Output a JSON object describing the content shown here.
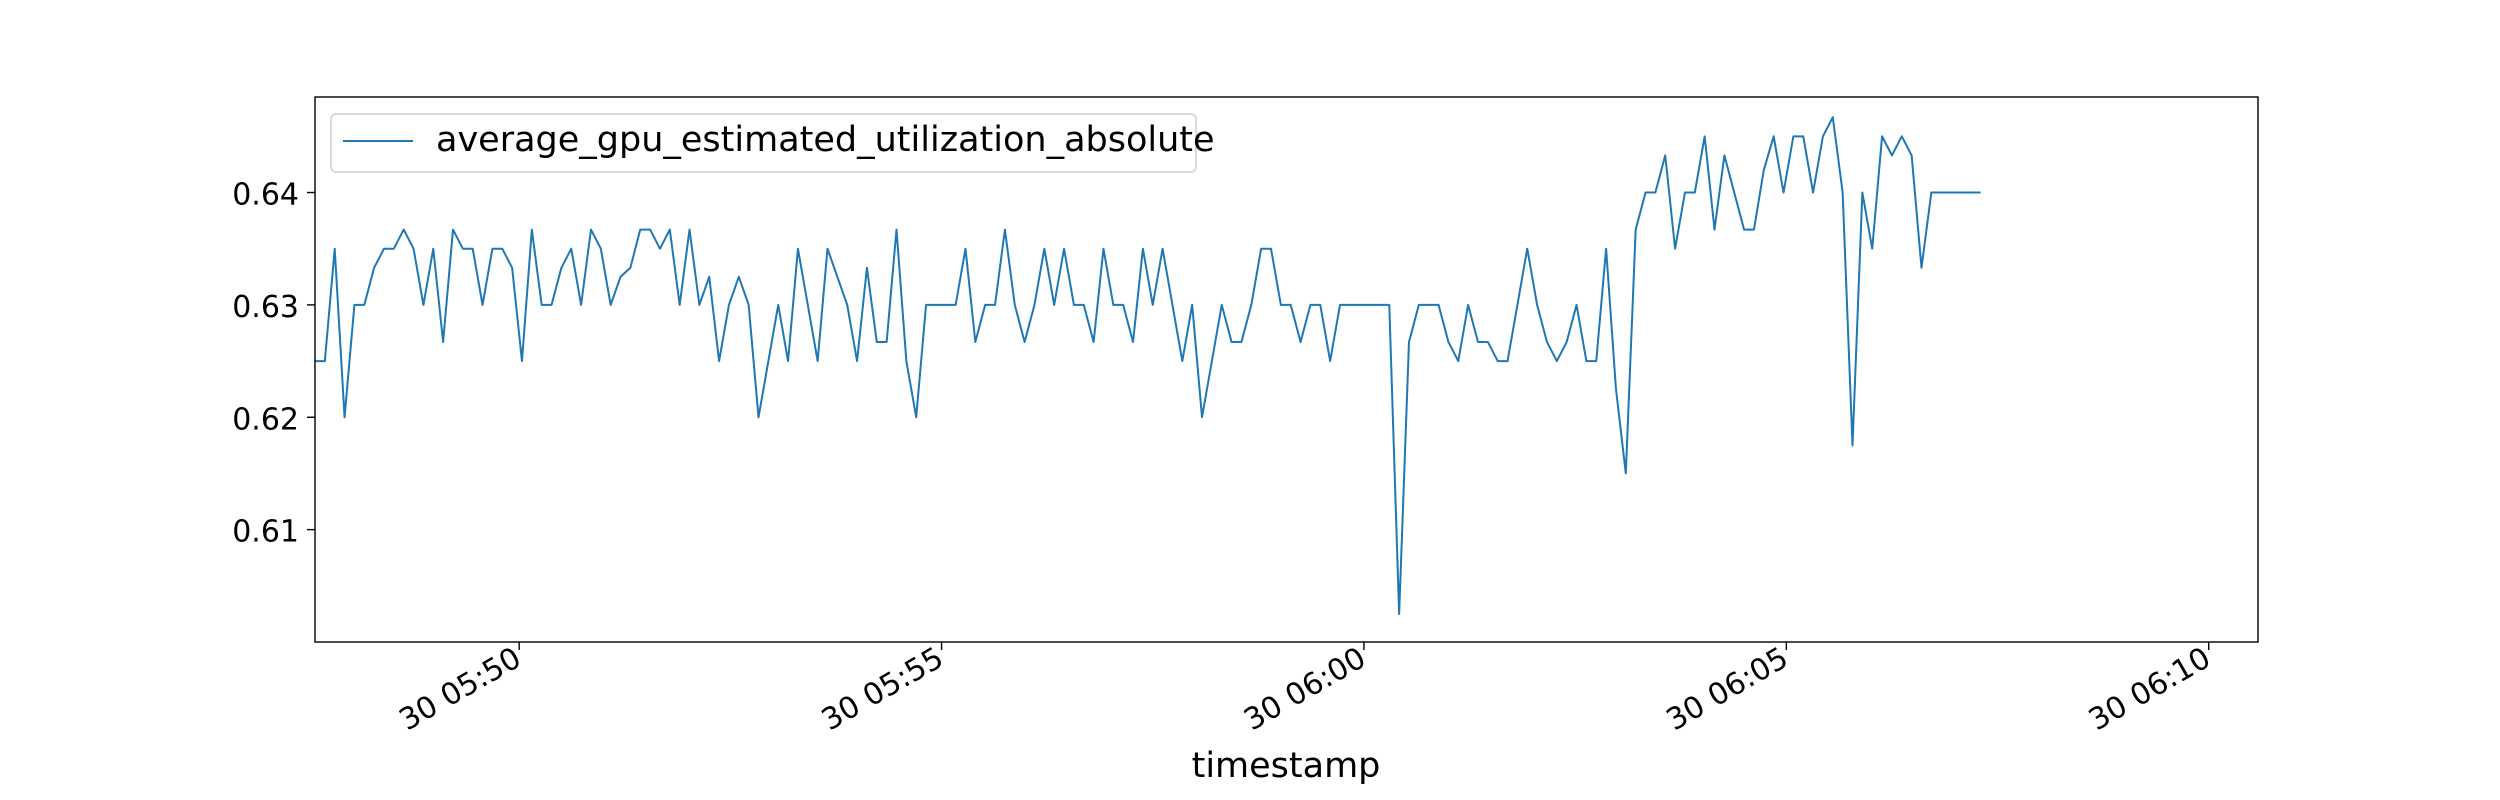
{
  "chart_data": {
    "type": "line",
    "title": "",
    "xlabel": "timestamp",
    "ylabel": "",
    "x_start": "05:47:35",
    "x_step_seconds": 7,
    "xlim": [
      "05:47:35",
      "06:10:35"
    ],
    "ylim": [
      0.6,
      0.6485
    ],
    "x_ticks": [
      {
        "time": "05:50:00",
        "label": "30 05:50"
      },
      {
        "time": "05:55:00",
        "label": "30 05:55"
      },
      {
        "time": "06:00:00",
        "label": "30 06:00"
      },
      {
        "time": "06:05:00",
        "label": "30 06:05"
      },
      {
        "time": "06:10:00",
        "label": "30 06:10"
      }
    ],
    "y_ticks": [
      {
        "value": 0.61,
        "label": "0.61"
      },
      {
        "value": 0.62,
        "label": "0.62"
      },
      {
        "value": 0.63,
        "label": "0.63"
      },
      {
        "value": 0.64,
        "label": "0.64"
      }
    ],
    "grid": false,
    "legend_position": "top-left",
    "series": [
      {
        "name": "average_gpu_estimated_utilization_absolute",
        "color": "#1f77b4",
        "values": [
          0.625,
          0.625,
          0.635,
          0.62,
          0.63,
          0.63,
          0.6333,
          0.635,
          0.635,
          0.6367,
          0.635,
          0.63,
          0.635,
          0.6267,
          0.6367,
          0.635,
          0.635,
          0.63,
          0.635,
          0.635,
          0.6333,
          0.625,
          0.6367,
          0.63,
          0.63,
          0.6333,
          0.635,
          0.63,
          0.6367,
          0.635,
          0.63,
          0.6325,
          0.6333,
          0.6367,
          0.6367,
          0.635,
          0.6367,
          0.63,
          0.6367,
          0.63,
          0.6325,
          0.625,
          0.63,
          0.6325,
          0.63,
          0.62,
          0.625,
          0.63,
          0.625,
          0.635,
          0.63,
          0.625,
          0.635,
          0.6325,
          0.63,
          0.625,
          0.6333,
          0.6267,
          0.6267,
          0.6367,
          0.625,
          0.62,
          0.63,
          0.63,
          0.63,
          0.63,
          0.635,
          0.6267,
          0.63,
          0.63,
          0.6367,
          0.63,
          0.6267,
          0.63,
          0.635,
          0.63,
          0.635,
          0.63,
          0.63,
          0.6267,
          0.635,
          0.63,
          0.63,
          0.6267,
          0.635,
          0.63,
          0.635,
          0.63,
          0.625,
          0.63,
          0.62,
          0.625,
          0.63,
          0.6267,
          0.6267,
          0.63,
          0.635,
          0.635,
          0.63,
          0.63,
          0.6267,
          0.63,
          0.63,
          0.625,
          0.63,
          0.63,
          0.63,
          0.63,
          0.63,
          0.63,
          0.6025,
          0.6267,
          0.63,
          0.63,
          0.63,
          0.6267,
          0.625,
          0.63,
          0.6267,
          0.6267,
          0.625,
          0.625,
          0.63,
          0.635,
          0.63,
          0.6267,
          0.625,
          0.6267,
          0.63,
          0.625,
          0.625,
          0.635,
          0.6225,
          0.615,
          0.6367,
          0.64,
          0.64,
          0.6433,
          0.635,
          0.64,
          0.64,
          0.645,
          0.6367,
          0.6433,
          0.64,
          0.6367,
          0.6367,
          0.642,
          0.645,
          0.64,
          0.645,
          0.645,
          0.64,
          0.645,
          0.6467,
          0.64,
          0.6175,
          0.64,
          0.635,
          0.645,
          0.6433,
          0.645,
          0.6433,
          0.6333,
          0.64,
          0.64,
          0.64,
          0.64,
          0.64,
          0.64
        ]
      }
    ]
  }
}
